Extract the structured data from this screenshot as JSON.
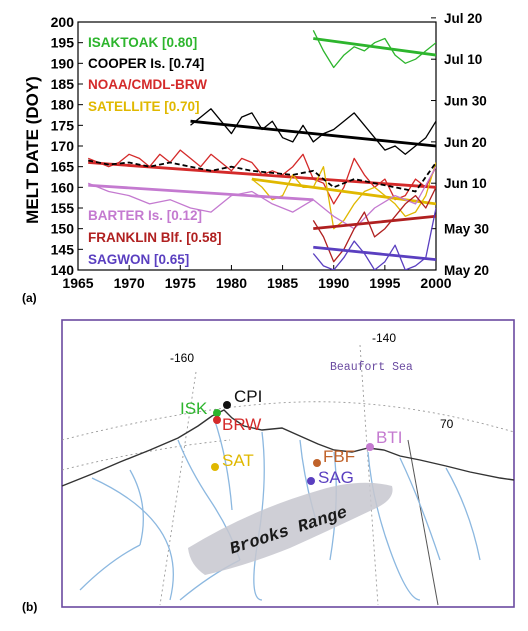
{
  "panel_a": {
    "label": "(a)",
    "ylabel": "MELT DATE (DOY)",
    "right_ticks": [
      {
        "label": "Jul 20",
        "doy": 201
      },
      {
        "label": "Jul 10",
        "doy": 191
      },
      {
        "label": "Jun 30",
        "doy": 181
      },
      {
        "label": "Jun 20",
        "doy": 171
      },
      {
        "label": "Jun 10",
        "doy": 161
      },
      {
        "label": "May 30",
        "doy": 150
      },
      {
        "label": "May 20",
        "doy": 140
      }
    ],
    "legend": {
      "isaktoak": "ISAKTOAK  [0.80]",
      "cooper": "COOPER Is.  [0.74]",
      "noaa": "NOAA/CMDL-BRW",
      "satellite": "SATELLITE  [0.70]",
      "barter": "BARTER Is.  [0.12]",
      "franklin": "FRANKLIN Blf.  [0.58]",
      "sagwon": "SAGWON  [0.65]"
    }
  },
  "panel_b": {
    "label": "(b)",
    "lon_160": "-160",
    "lon_140": "-140",
    "lat_70": "70",
    "sea_label": "Beaufort Sea",
    "range_label": "Brooks Range",
    "stations": {
      "cpi": "CPI",
      "isk": "ISK",
      "brw": "BRW",
      "sat": "SAT",
      "fbf": "FBF",
      "sag": "SAG",
      "bti": "BTI"
    }
  },
  "chart_data": {
    "type": "line",
    "title": "",
    "xlabel": "",
    "ylabel": "MELT DATE (DOY)",
    "xlim": [
      1965,
      2000
    ],
    "ylim": [
      140,
      200
    ],
    "x_ticks": [
      1965,
      1970,
      1975,
      1980,
      1985,
      1990,
      1995,
      2000
    ],
    "y_ticks": [
      140,
      145,
      150,
      155,
      160,
      165,
      170,
      175,
      180,
      185,
      190,
      195,
      200
    ],
    "series": [
      {
        "name": "ISAKTOAK  [0.80]",
        "color": "#2db52d",
        "x": [
          1988,
          1989,
          1990,
          1991,
          1992,
          1993,
          1994,
          1995,
          1996,
          1997,
          1998,
          1999,
          2000
        ],
        "y": [
          198,
          193,
          189,
          192,
          194,
          193,
          195,
          196,
          192,
          190,
          191,
          193,
          195
        ],
        "trend": {
          "x": [
            1988,
            2000
          ],
          "y": [
            196,
            192
          ]
        }
      },
      {
        "name": "COOPER Is.  [0.74]",
        "color": "#000000",
        "x": [
          1976,
          1977,
          1978,
          1979,
          1980,
          1981,
          1982,
          1983,
          1984,
          1985,
          1986,
          1987,
          1988,
          1989,
          1990,
          1991,
          1992,
          1993,
          1994,
          1995,
          1996,
          1997,
          1998,
          1999,
          2000
        ],
        "y": [
          175,
          177,
          179,
          176,
          173,
          177,
          178,
          174,
          176,
          172,
          171,
          175,
          171,
          173,
          174,
          176,
          178,
          175,
          172,
          169,
          170,
          168,
          170,
          172,
          176
        ],
        "trend": {
          "x": [
            1976,
            2000
          ],
          "y": [
            176,
            170
          ]
        }
      },
      {
        "name": "NOAA/CMDL-BRW",
        "color": "#d42a2a",
        "x": [
          1966,
          1967,
          1968,
          1969,
          1970,
          1971,
          1972,
          1973,
          1974,
          1975,
          1976,
          1977,
          1978,
          1979,
          1980,
          1981,
          1982,
          1983,
          1984,
          1985,
          1986,
          1987,
          1988,
          1989,
          1990,
          1991,
          1992,
          1993,
          1994,
          1995,
          1996,
          1997,
          1998,
          1999,
          2000
        ],
        "y": [
          167,
          166,
          165,
          166,
          168,
          167,
          165,
          168,
          166,
          169,
          167,
          165,
          168,
          166,
          164,
          167,
          166,
          163,
          164,
          163,
          165,
          168,
          162,
          161,
          156,
          160,
          167,
          163,
          160,
          162,
          157,
          158,
          162,
          160,
          165
        ],
        "trend": {
          "x": [
            1966,
            2000
          ],
          "y": [
            166,
            160
          ]
        }
      },
      {
        "name": "SATELLITE  [0.70]",
        "color": "#e0b800",
        "x": [
          1982,
          1983,
          1984,
          1985,
          1986,
          1987,
          1988,
          1989,
          1990,
          1991,
          1992,
          1993,
          1994,
          1995,
          1996,
          1997,
          1998,
          1999,
          2000
        ],
        "y": [
          162,
          160,
          157,
          158,
          163,
          160,
          160,
          165,
          150,
          152,
          156,
          159,
          160,
          158,
          156,
          153,
          154,
          158,
          166
        ],
        "trend": {
          "x": [
            1982,
            2000
          ],
          "y": [
            162,
            156
          ]
        }
      },
      {
        "name": "BARTER Is.  [0.12]",
        "color": "#c47ad0",
        "x": [
          1966,
          1968,
          1970,
          1972,
          1974,
          1976,
          1978,
          1980,
          1982,
          1984,
          1986,
          1988,
          1990,
          1992,
          1994,
          1996,
          1998,
          2000
        ],
        "y": [
          161,
          159,
          158,
          156,
          157,
          155,
          154,
          158,
          159,
          156,
          154,
          157,
          153,
          150,
          155,
          158,
          156,
          165
        ],
        "trend": {
          "x": [
            1966,
            1988
          ],
          "y": [
            160.5,
            157
          ]
        }
      },
      {
        "name": "FRANKLIN Blf.  [0.58]",
        "color": "#b02020",
        "x": [
          1988,
          1989,
          1990,
          1991,
          1992,
          1993,
          1994,
          1995,
          1996,
          1997,
          1998,
          1999,
          2000
        ],
        "y": [
          152,
          148,
          142,
          145,
          150,
          154,
          148,
          150,
          153,
          156,
          158,
          155,
          160
        ],
        "trend": {
          "x": [
            1988,
            2000
          ],
          "y": [
            150,
            153
          ]
        }
      },
      {
        "name": "SAGWON  [0.65]",
        "color": "#5a3fc0",
        "x": [
          1988,
          1989,
          1990,
          1991,
          1992,
          1993,
          1994,
          1995,
          1996,
          1997,
          1998,
          1999,
          2000
        ],
        "y": [
          144,
          141,
          140,
          143,
          147,
          144,
          140,
          142,
          146,
          140,
          141,
          143,
          155
        ],
        "trend": {
          "x": [
            1988,
            2000
          ],
          "y": [
            145.5,
            142.5
          ]
        }
      }
    ],
    "dashed_composite": {
      "color": "#000000",
      "x": [
        1966,
        1968,
        1970,
        1972,
        1974,
        1976,
        1978,
        1980,
        1982,
        1984,
        1986,
        1988,
        1990,
        1992,
        1994,
        1996,
        1998,
        2000
      ],
      "y": [
        166.5,
        165.5,
        166,
        165,
        166,
        165,
        164,
        165,
        164,
        163.5,
        163,
        164,
        160,
        162,
        161,
        160,
        159,
        166
      ]
    },
    "right_axis_ticks": [
      "Jul 20",
      "Jul 10",
      "Jun 30",
      "Jun 20",
      "Jun 10",
      "May 30",
      "May 20"
    ],
    "grid": false
  }
}
